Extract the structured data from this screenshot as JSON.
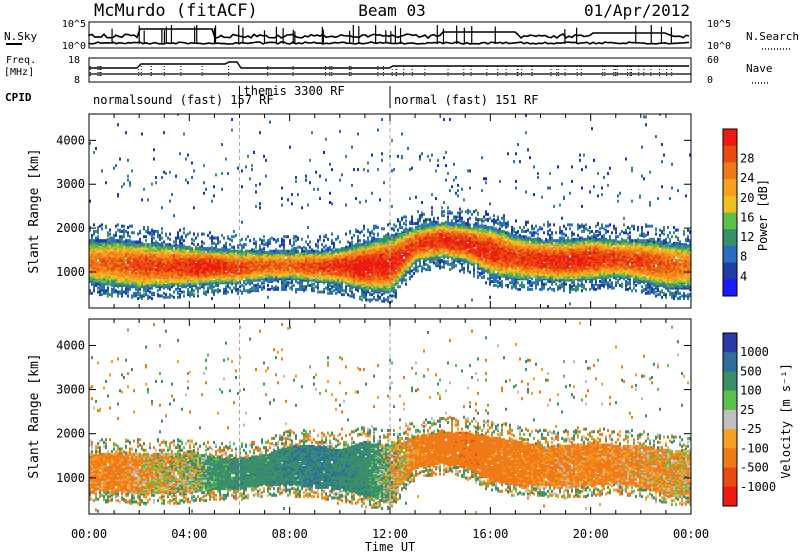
{
  "header": {
    "station": "McMurdo (fitACF)",
    "beam": "Beam 03",
    "date": "01/Apr/2012"
  },
  "summary": {
    "nsky_label": "N.Sky",
    "nsearch_label": "N.Search",
    "freq_label_1": "Freq.",
    "freq_label_2": "[MHz]",
    "nave_label": "Nave",
    "cpid_label": "CPID",
    "left_ticks_top": [
      "10^5",
      "10^0"
    ],
    "right_ticks_top": [
      "10^5",
      "10^0"
    ],
    "freq_ticks": [
      "18",
      "8"
    ],
    "nave_ticks": [
      "60",
      "0"
    ],
    "cpid_modes": [
      {
        "label": "normalsound (fast) 157 RF",
        "start_hour": 0,
        "end_hour": 6
      },
      {
        "label": "themis 3300 RF",
        "start_hour": 6,
        "end_hour": 12
      },
      {
        "label": "normal (fast) 151 RF",
        "start_hour": 12,
        "end_hour": 24
      }
    ]
  },
  "axes": {
    "ylabel": "Slant Range [km]",
    "xlabel": "Time UT",
    "yticks": [
      "1000",
      "2000",
      "3000",
      "4000"
    ],
    "xticks": [
      "00:00",
      "04:00",
      "08:00",
      "12:00",
      "16:00",
      "20:00",
      "00:00"
    ]
  },
  "colors": {
    "power": [
      "#1a1aff",
      "#1e3ea6",
      "#2b6ebf",
      "#3a8f6a",
      "#5cc04a",
      "#f0c020",
      "#f5a020",
      "#f07a18",
      "#e84a10",
      "#ee1a10"
    ],
    "velocity": [
      "#2a3aa8",
      "#2e6e9c",
      "#3a8f6a",
      "#5cc04a",
      "#c0c0c0",
      "#f5a020",
      "#f07a18",
      "#e84a10",
      "#ee1a10"
    ]
  },
  "chart_data": [
    {
      "type": "heatmap",
      "title": "Power",
      "colorbar_label": "Power [dB]",
      "colorbar_ticks": [
        "4",
        "8",
        "12",
        "16",
        "20",
        "24",
        "28"
      ],
      "xlabel": "Time UT",
      "ylabel": "Slant Range [km]",
      "xlim": [
        0,
        24
      ],
      "ylim": [
        180,
        4600
      ],
      "zlim": [
        0,
        32
      ],
      "hours": [
        0,
        1,
        2,
        3,
        4,
        5,
        6,
        7,
        8,
        9,
        10,
        11,
        12,
        13,
        14,
        15,
        16,
        17,
        18,
        19,
        20,
        21,
        22,
        23,
        24
      ],
      "echo_lower_km": [
        700,
        650,
        600,
        620,
        650,
        700,
        720,
        800,
        800,
        750,
        700,
        550,
        500,
        1200,
        1300,
        1200,
        900,
        800,
        800,
        750,
        800,
        850,
        750,
        600,
        600
      ],
      "echo_upper_km": [
        1700,
        1700,
        1650,
        1600,
        1550,
        1500,
        1450,
        1450,
        1450,
        1450,
        1500,
        1650,
        1800,
        2000,
        2100,
        2050,
        2000,
        1800,
        1700,
        1700,
        1750,
        1700,
        1700,
        1650,
        1600
      ],
      "peak_power_db": [
        24,
        26,
        28,
        28,
        30,
        30,
        28,
        26,
        26,
        28,
        30,
        32,
        30,
        28,
        30,
        30,
        30,
        28,
        30,
        30,
        30,
        28,
        28,
        26,
        24
      ]
    },
    {
      "type": "heatmap",
      "title": "Velocity",
      "colorbar_label": "Velocity [m s⁻¹]",
      "colorbar_ticks": [
        "1000",
        "500",
        "100",
        "25",
        "-25",
        "-100",
        "-500",
        "-1000"
      ],
      "xlabel": "Time UT",
      "ylabel": "Slant Range [km]",
      "xlim": [
        0,
        24
      ],
      "ylim": [
        180,
        4600
      ],
      "hours": [
        0,
        1,
        2,
        3,
        4,
        5,
        6,
        7,
        8,
        9,
        10,
        11,
        12,
        13,
        14,
        15,
        16,
        17,
        18,
        19,
        20,
        21,
        22,
        23,
        24
      ],
      "echo_lower_km": [
        700,
        650,
        600,
        620,
        650,
        700,
        720,
        800,
        800,
        750,
        700,
        550,
        500,
        1200,
        1300,
        1200,
        900,
        800,
        800,
        750,
        800,
        850,
        750,
        600,
        600
      ],
      "echo_upper_km": [
        1500,
        1500,
        1500,
        1500,
        1500,
        1450,
        1400,
        1500,
        1700,
        1700,
        1600,
        1800,
        1700,
        1900,
        2000,
        2000,
        1900,
        1800,
        1700,
        1700,
        1750,
        1700,
        1700,
        1600,
        1550
      ],
      "dominant_velocity_ms": [
        -120,
        -150,
        -80,
        -30,
        0,
        150,
        200,
        180,
        250,
        300,
        250,
        200,
        0,
        -150,
        -200,
        -250,
        -200,
        -180,
        -150,
        -120,
        -150,
        -120,
        -100,
        -80,
        -50
      ]
    }
  ]
}
